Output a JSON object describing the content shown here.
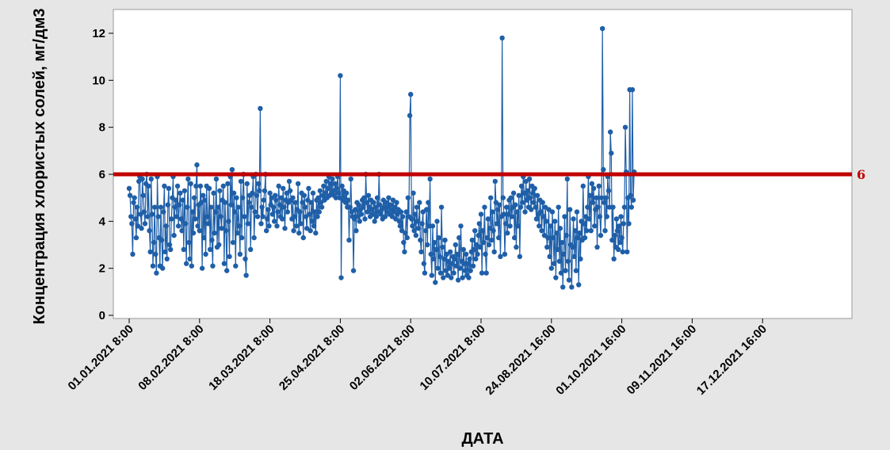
{
  "chart_data": {
    "type": "line",
    "xlabel": "ДАТА",
    "ylabel": "Концентрация хлористых солей, мг/дм3",
    "ylim": [
      -0.4,
      13
    ],
    "y_ticks": [
      0,
      2,
      4,
      6,
      8,
      10,
      12
    ],
    "x_tick_labels": [
      "01.01.2021 8:00",
      "08.02.2021 8:00",
      "18.03.2021 8:00",
      "25.04.2021 8:00",
      "02.06.2021 8:00",
      "10.07.2021 8:00",
      "24.08.2021 16:00",
      "01.10.2021 16:00",
      "09.11.2021 16:00",
      "17.12.2021 16:00"
    ],
    "observations_per_tick_interval": 80,
    "reference_line": {
      "value": 6,
      "label": "6",
      "color": "#c00000"
    },
    "series_color": "#1f5fa8",
    "grid": false,
    "series": [
      {
        "values": [
          5.4,
          5.1,
          4.2,
          3.9,
          2.6,
          4.8,
          5.0,
          4.1,
          3.3,
          4.6,
          3.8,
          5.7,
          5.9,
          4.3,
          3.7,
          5.8,
          5.1,
          4.4,
          3.9,
          5.6,
          6.0,
          4.2,
          5.5,
          3.6,
          2.7,
          5.8,
          4.3,
          2.1,
          3.1,
          4.6,
          2.6,
          1.8,
          5.9,
          4.2,
          3.3,
          2.1,
          4.6,
          3.2,
          2.0,
          4.4,
          5.5,
          2.7,
          3.8,
          2.4,
          4.7,
          5.4,
          3.0,
          2.8,
          4.1,
          5.0,
          5.9,
          3.4,
          4.6,
          4.9,
          4.2,
          5.5,
          3.8,
          4.7,
          5.2,
          4.1,
          3.6,
          4.9,
          2.8,
          5.3,
          3.9,
          2.2,
          4.6,
          5.8,
          3.1,
          2.4,
          5.6,
          2.1,
          4.4,
          3.5,
          5.0,
          4.1,
          5.5,
          6.4,
          3.8,
          4.7,
          3.6,
          5.5,
          4.8,
          2.0,
          5.1,
          3.3,
          4.9,
          2.6,
          5.5,
          4.2,
          3.9,
          5.4,
          2.8,
          4.6,
          3.2,
          2.1,
          5.2,
          3.5,
          4.4,
          5.8,
          2.9,
          4.6,
          3.0,
          5.3,
          4.2,
          3.7,
          4.9,
          5.5,
          2.2,
          4.8,
          3.6,
          1.9,
          5.6,
          4.0,
          2.5,
          5.9,
          4.7,
          6.2,
          3.1,
          5.2,
          4.4,
          2.1,
          5.0,
          3.5,
          4.6,
          3.8,
          2.6,
          5.7,
          3.3,
          5.0,
          6.0,
          4.2,
          2.4,
          1.7,
          5.6,
          3.9,
          4.8,
          5.1,
          2.8,
          4.6,
          5.2,
          5.9,
          3.3,
          4.4,
          6.0,
          5.1,
          4.2,
          5.6,
          5.3,
          8.8,
          3.9,
          4.6,
          4.2,
          4.9,
          5.3,
          6.0,
          3.6,
          4.1,
          4.5,
          3.8,
          5.2,
          4.7,
          5.0,
          4.3,
          4.6,
          4.0,
          5.1,
          4.9,
          3.8,
          4.4,
          5.5,
          4.7,
          4.2,
          5.0,
          4.1,
          5.4,
          4.6,
          3.7,
          4.9,
          5.2,
          4.4,
          4.8,
          5.7,
          5.3,
          4.9,
          4.1,
          5.0,
          3.6,
          4.2,
          4.8,
          3.8,
          4.5,
          5.6,
          3.5,
          4.4,
          3.9,
          5.2,
          4.8,
          3.3,
          5.1,
          4.6,
          4.2,
          3.7,
          4.9,
          5.4,
          4.3,
          3.6,
          4.8,
          4.0,
          5.2,
          3.8,
          4.4,
          3.5,
          4.9,
          4.2,
          5.0,
          4.4,
          5.3,
          4.8,
          4.6,
          5.1,
          5.5,
          4.9,
          5.2,
          5.7,
          5.0,
          5.4,
          5.9,
          5.1,
          5.6,
          5.2,
          5.8,
          5.3,
          5.1,
          5.6,
          5.0,
          5.4,
          5.9,
          5.2,
          5.0,
          10.2,
          1.6,
          5.5,
          4.9,
          5.3,
          5.0,
          4.8,
          5.2,
          4.6,
          4.9,
          3.2,
          4.6,
          5.8,
          4.4,
          4.2,
          1.9,
          4.1,
          4.5,
          3.6,
          4.8,
          4.2,
          4.7,
          4.0,
          4.5,
          4.3,
          4.9,
          4.6,
          5.0,
          4.1,
          6.0,
          4.8,
          4.4,
          5.1,
          4.6,
          4.2,
          4.9,
          4.5,
          4.3,
          4.8,
          4.0,
          4.6,
          4.2,
          5.0,
          4.4,
          6.0,
          4.7,
          4.3,
          4.5,
          4.1,
          4.9,
          4.6,
          4.2,
          4.8,
          4.4,
          4.6,
          5.0,
          4.3,
          4.7,
          4.5,
          4.2,
          4.9,
          4.4,
          4.6,
          4.1,
          4.8,
          4.3,
          4.5,
          4.0,
          3.8,
          4.4,
          3.6,
          4.2,
          3.1,
          2.7,
          3.5,
          4.4,
          3.3,
          5.0,
          4.2,
          8.5,
          9.4,
          4.1,
          3.8,
          5.2,
          3.6,
          4.3,
          3.4,
          4.6,
          4.0,
          3.7,
          4.8,
          3.2,
          2.7,
          3.9,
          4.4,
          2.2,
          1.8,
          3.6,
          4.5,
          3.0,
          4.8,
          3.8,
          5.8,
          2.6,
          1.7,
          3.8,
          2.4,
          3.1,
          1.4,
          2.8,
          4.0,
          2.0,
          3.3,
          2.5,
          1.8,
          4.6,
          2.9,
          1.6,
          2.4,
          3.2,
          1.9,
          2.6,
          1.7,
          2.3,
          2.0,
          2.7,
          1.6,
          2.2,
          2.5,
          1.8,
          2.4,
          3.0,
          2.1,
          2.6,
          1.5,
          3.3,
          2.0,
          3.8,
          2.3,
          1.6,
          2.8,
          2.2,
          1.9,
          2.6,
          1.7,
          2.2,
          1.6,
          2.4,
          1.9,
          2.7,
          3.2,
          2.1,
          2.8,
          3.6,
          2.4,
          3.0,
          2.6,
          3.4,
          3.9,
          2.9,
          4.3,
          1.8,
          3.6,
          3.1,
          4.6,
          2.6,
          1.8,
          3.3,
          4.1,
          3.0,
          3.7,
          5.0,
          3.2,
          4.4,
          3.6,
          2.7,
          5.7,
          4.8,
          3.9,
          4.5,
          3.3,
          4.7,
          2.5,
          4.2,
          11.8,
          5.0,
          4.3,
          2.6,
          3.9,
          4.6,
          3.5,
          4.3,
          4.9,
          3.8,
          5.0,
          4.2,
          4.6,
          5.2,
          3.3,
          4.7,
          2.9,
          4.4,
          3.8,
          5.1,
          2.5,
          4.6,
          5.5,
          4.8,
          5.9,
          5.2,
          4.4,
          5.7,
          4.9,
          5.3,
          4.6,
          5.8,
          5.0,
          4.5,
          5.5,
          5.2,
          4.8,
          5.4,
          4.6,
          4.1,
          5.1,
          4.3,
          3.8,
          4.9,
          4.4,
          3.6,
          4.8,
          4.2,
          3.4,
          4.6,
          4.0,
          2.9,
          3.3,
          4.5,
          2.5,
          3.8,
          2.0,
          4.4,
          3.3,
          2.2,
          4.0,
          1.6,
          3.5,
          2.8,
          4.6,
          2.3,
          3.7,
          1.8,
          3.1,
          1.2,
          2.6,
          4.2,
          1.9,
          3.4,
          5.8,
          2.3,
          1.5,
          4.5,
          3.0,
          1.2,
          2.9,
          4.1,
          2.5,
          3.6,
          1.9,
          4.4,
          3.3,
          1.3,
          3.5,
          2.4,
          4.0,
          3.2,
          5.5,
          3.9,
          3.3,
          4.2,
          3.6,
          4.6,
          5.9,
          4.1,
          5.1,
          3.6,
          5.6,
          4.8,
          5.4,
          3.8,
          4.5,
          5.0,
          2.9,
          4.6,
          5.5,
          4.2,
          3.4,
          5.0,
          12.2,
          6.2,
          4.8,
          3.6,
          5.0,
          4.2,
          5.9,
          5.3,
          4.6,
          7.8,
          6.9,
          3.2,
          4.6,
          2.4,
          3.4,
          2.9,
          4.1,
          3.6,
          2.8,
          3.8,
          3.1,
          4.2,
          3.3,
          2.7,
          3.9,
          4.6,
          8.0,
          6.1,
          2.7,
          5.0,
          3.9,
          9.6,
          5.1,
          4.6,
          9.6,
          4.9,
          6.1
        ]
      }
    ]
  }
}
